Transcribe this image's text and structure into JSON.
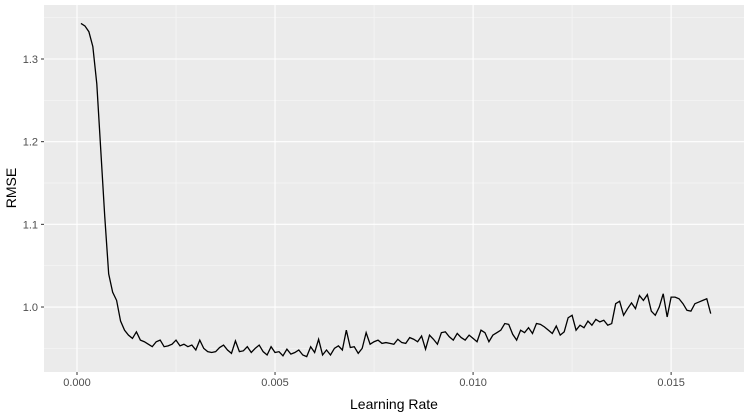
{
  "chart_data": {
    "type": "line",
    "x_label": "Learning Rate",
    "y_label": "RMSE",
    "color": "#000000",
    "grid": true,
    "xlim": [
      -0.000833,
      0.01684
    ],
    "ylim": [
      0.9214,
      1.3653
    ],
    "xticks": [
      {
        "value": 0,
        "label": "0.000"
      },
      {
        "value": 0.005,
        "label": "0.005"
      },
      {
        "value": 0.01,
        "label": "0.010"
      },
      {
        "value": 0.015,
        "label": "0.015"
      }
    ],
    "yticks": [
      {
        "value": 1.0,
        "label": "1.0"
      },
      {
        "value": 1.1,
        "label": "1.1"
      },
      {
        "value": 1.2,
        "label": "1.2"
      },
      {
        "value": 1.3,
        "label": "1.3"
      }
    ],
    "x": [
      0.0001,
      0.0002,
      0.0003,
      0.0004,
      0.0005,
      0.0006,
      0.0007,
      0.0008,
      0.0009,
      0.001,
      0.0011,
      0.0012,
      0.0013,
      0.0014,
      0.0015,
      0.0016,
      0.0017,
      0.0018,
      0.0019,
      0.002,
      0.0021,
      0.0022,
      0.0023,
      0.0024,
      0.0025,
      0.0026,
      0.0027,
      0.0028,
      0.0029,
      0.003,
      0.0031,
      0.0032,
      0.0033,
      0.0034,
      0.0035,
      0.0036,
      0.0037,
      0.0038,
      0.0039,
      0.004,
      0.0041,
      0.0042,
      0.0043,
      0.0044,
      0.0045,
      0.0046,
      0.0047,
      0.0048,
      0.0049,
      0.005,
      0.0051,
      0.0052,
      0.0053,
      0.0054,
      0.0055,
      0.0056,
      0.0057,
      0.0058,
      0.0059,
      0.006,
      0.0061,
      0.0062,
      0.0063,
      0.0064,
      0.0065,
      0.0066,
      0.0067,
      0.0068,
      0.0069,
      0.007,
      0.0071,
      0.0072,
      0.0073,
      0.0074,
      0.0075,
      0.0076,
      0.0077,
      0.0078,
      0.0079,
      0.008,
      0.0081,
      0.0082,
      0.0083,
      0.0084,
      0.0085,
      0.0086,
      0.0087,
      0.0088,
      0.0089,
      0.009,
      0.0091,
      0.0092,
      0.0093,
      0.0094,
      0.0095,
      0.0096,
      0.0097,
      0.0098,
      0.0099,
      0.01,
      0.0101,
      0.0102,
      0.0103,
      0.0104,
      0.0105,
      0.0106,
      0.0107,
      0.0108,
      0.0109,
      0.011,
      0.0111,
      0.0112,
      0.0113,
      0.0114,
      0.0115,
      0.0116,
      0.0117,
      0.0118,
      0.0119,
      0.012,
      0.0121,
      0.0122,
      0.0123,
      0.0124,
      0.0125,
      0.0126,
      0.0127,
      0.0128,
      0.0129,
      0.013,
      0.0131,
      0.0132,
      0.0133,
      0.0134,
      0.0135,
      0.0136,
      0.0137,
      0.0138,
      0.0139,
      0.014,
      0.0141,
      0.0142,
      0.0143,
      0.0144,
      0.0145,
      0.0146,
      0.0147,
      0.0148,
      0.0149,
      0.015,
      0.0151,
      0.0152,
      0.0153,
      0.0154,
      0.0155,
      0.0156,
      0.0157,
      0.0158,
      0.0159,
      0.016
    ],
    "values": [
      1.343,
      1.34,
      1.333,
      1.315,
      1.27,
      1.19,
      1.11,
      1.04,
      1.018,
      1.008,
      0.983,
      0.972,
      0.966,
      0.962,
      0.97,
      0.96,
      0.958,
      0.955,
      0.952,
      0.958,
      0.96,
      0.952,
      0.953,
      0.955,
      0.96,
      0.953,
      0.955,
      0.952,
      0.954,
      0.948,
      0.96,
      0.95,
      0.946,
      0.945,
      0.946,
      0.951,
      0.954,
      0.948,
      0.944,
      0.959,
      0.946,
      0.947,
      0.952,
      0.945,
      0.95,
      0.954,
      0.946,
      0.942,
      0.952,
      0.945,
      0.946,
      0.941,
      0.949,
      0.943,
      0.945,
      0.948,
      0.942,
      0.94,
      0.952,
      0.945,
      0.961,
      0.942,
      0.948,
      0.942,
      0.95,
      0.953,
      0.948,
      0.972,
      0.951,
      0.952,
      0.944,
      0.95,
      0.969,
      0.955,
      0.958,
      0.96,
      0.956,
      0.957,
      0.956,
      0.955,
      0.961,
      0.957,
      0.956,
      0.963,
      0.961,
      0.958,
      0.965,
      0.949,
      0.966,
      0.961,
      0.955,
      0.969,
      0.97,
      0.964,
      0.96,
      0.968,
      0.963,
      0.96,
      0.966,
      0.962,
      0.958,
      0.972,
      0.969,
      0.958,
      0.966,
      0.969,
      0.972,
      0.98,
      0.979,
      0.967,
      0.96,
      0.972,
      0.969,
      0.975,
      0.968,
      0.98,
      0.979,
      0.976,
      0.972,
      0.968,
      0.977,
      0.966,
      0.97,
      0.987,
      0.99,
      0.972,
      0.978,
      0.975,
      0.983,
      0.978,
      0.985,
      0.982,
      0.984,
      0.978,
      0.98,
      1.004,
      1.007,
      0.99,
      0.998,
      1.005,
      0.998,
      1.014,
      1.008,
      1.015,
      0.995,
      0.99,
      1.0,
      1.016,
      0.988,
      1.012,
      1.012,
      1.01,
      1.004,
      0.996,
      0.995,
      1.004,
      1.006,
      1.008,
      1.01,
      0.992
    ]
  }
}
